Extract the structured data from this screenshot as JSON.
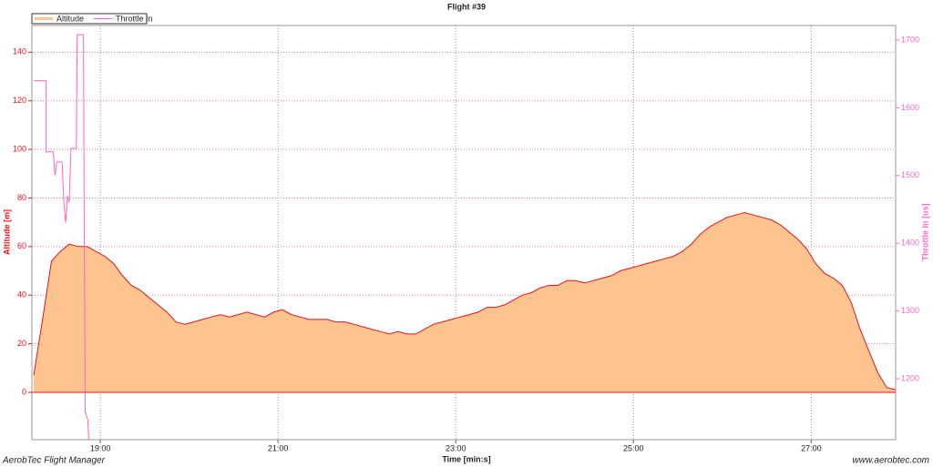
{
  "chart_data": {
    "type": "area-line",
    "title": "Flight #39",
    "xlabel": "Time [min:s]",
    "ylabel": "Altitude [m]",
    "y2label": "Throttle In [us]",
    "xlim": [
      18.23,
      27.95
    ],
    "ylim": [
      -19.5,
      151
    ],
    "y2lim": [
      1110,
      1721.5
    ],
    "xticks": [
      {
        "value": 19,
        "label": "19:00"
      },
      {
        "value": 21,
        "label": "21:00"
      },
      {
        "value": 23,
        "label": "23:00"
      },
      {
        "value": 25,
        "label": "25:00"
      },
      {
        "value": 27,
        "label": "27:00"
      }
    ],
    "yticks": [
      0,
      20,
      40,
      60,
      80,
      100,
      120,
      140
    ],
    "y2ticks": [
      1200,
      1300,
      1400,
      1500,
      1600,
      1700
    ],
    "grid": true,
    "legend": "top-left",
    "series": [
      {
        "name": "Altitude",
        "color": "#e8141c",
        "fill": "#fdc48f",
        "axis": "y",
        "x": [
          18.25,
          18.35,
          18.45,
          18.55,
          18.65,
          18.75,
          18.85,
          18.95,
          19.05,
          19.15,
          19.25,
          19.35,
          19.45,
          19.55,
          19.65,
          19.75,
          19.85,
          19.95,
          20.05,
          20.15,
          20.25,
          20.35,
          20.45,
          20.55,
          20.65,
          20.75,
          20.85,
          20.95,
          21.05,
          21.15,
          21.25,
          21.35,
          21.45,
          21.55,
          21.65,
          21.75,
          21.85,
          21.95,
          22.05,
          22.15,
          22.25,
          22.35,
          22.45,
          22.55,
          22.65,
          22.75,
          22.85,
          22.95,
          23.05,
          23.15,
          23.25,
          23.35,
          23.45,
          23.55,
          23.65,
          23.75,
          23.85,
          23.95,
          24.05,
          24.15,
          24.25,
          24.35,
          24.45,
          24.55,
          24.65,
          24.75,
          24.85,
          24.95,
          25.05,
          25.15,
          25.25,
          25.35,
          25.45,
          25.55,
          25.65,
          25.75,
          25.85,
          25.95,
          26.05,
          26.15,
          26.25,
          26.35,
          26.45,
          26.55,
          26.65,
          26.75,
          26.85,
          26.95,
          27.05,
          27.15,
          27.25,
          27.35,
          27.45,
          27.55,
          27.65,
          27.75,
          27.85,
          27.95
        ],
        "values": [
          7,
          30,
          54,
          58,
          61,
          60,
          60,
          58,
          56,
          53,
          48,
          44,
          42,
          39,
          36,
          33,
          29,
          28,
          29,
          30,
          31,
          32,
          31,
          32,
          33,
          32,
          31,
          33,
          34,
          32,
          31,
          30,
          30,
          30,
          29,
          29,
          28,
          27,
          26,
          25,
          24,
          25,
          24,
          24,
          26,
          28,
          29,
          30,
          31,
          32,
          33,
          35,
          35,
          36,
          38,
          40,
          41,
          43,
          44,
          44,
          46,
          46,
          45,
          46,
          47,
          48,
          50,
          51,
          52,
          53,
          54,
          55,
          56,
          58,
          61,
          65,
          68,
          70,
          72,
          73,
          74,
          73,
          72,
          71,
          69,
          66,
          63,
          59,
          53,
          49,
          47,
          44,
          37,
          26,
          17,
          8,
          2,
          1
        ]
      },
      {
        "name": "Throttle In",
        "color": "#ff66cc",
        "axis": "y2",
        "x": [
          18.25,
          18.39,
          18.39,
          18.47,
          18.49,
          18.51,
          18.57,
          18.59,
          18.61,
          18.63,
          18.65,
          18.67,
          18.73,
          18.74,
          18.81,
          18.82,
          18.83,
          18.86,
          18.87
        ],
        "values": [
          1640,
          1640,
          1535,
          1535,
          1500,
          1520,
          1520,
          1460,
          1430,
          1470,
          1460,
          1540,
          1540,
          1708,
          1708,
          1400,
          1150,
          1140,
          1110
        ]
      }
    ],
    "footer_left": "AerobTec Flight Manager",
    "footer_right": "www.aerobtec.com"
  }
}
